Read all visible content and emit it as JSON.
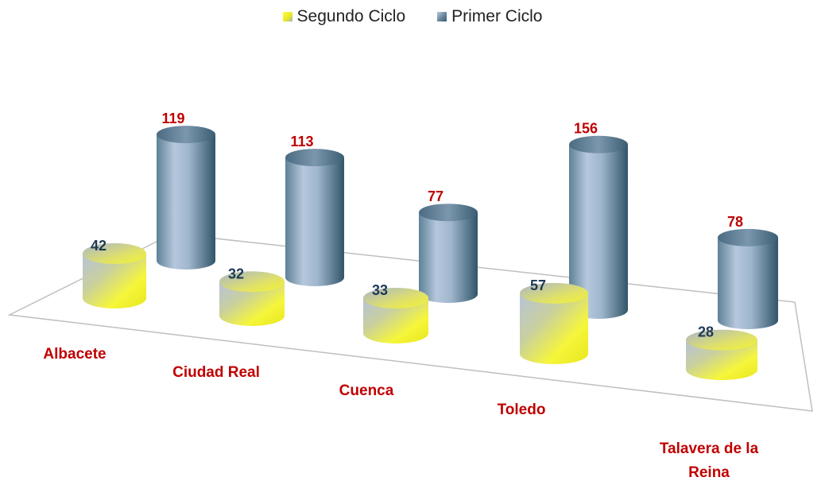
{
  "legend": [
    {
      "name": "Segundo Ciclo",
      "color": "#f2f22a"
    },
    {
      "name": "Primer Ciclo",
      "color": "#4f6f86"
    }
  ],
  "chart_data": {
    "type": "bar",
    "style": "3d-cylinder",
    "categories": [
      "Albacete",
      "Ciudad Real",
      "Cuenca",
      "Toledo",
      "Talavera de la Reina"
    ],
    "series": [
      {
        "name": "Segundo Ciclo",
        "values": [
          42,
          32,
          33,
          57,
          28
        ],
        "label_color": "#1f3a55"
      },
      {
        "name": "Primer Ciclo",
        "values": [
          119,
          113,
          77,
          156,
          78
        ],
        "label_color": "#c00000"
      }
    ],
    "legend_position": "top",
    "category_label_color": "#c00000"
  }
}
